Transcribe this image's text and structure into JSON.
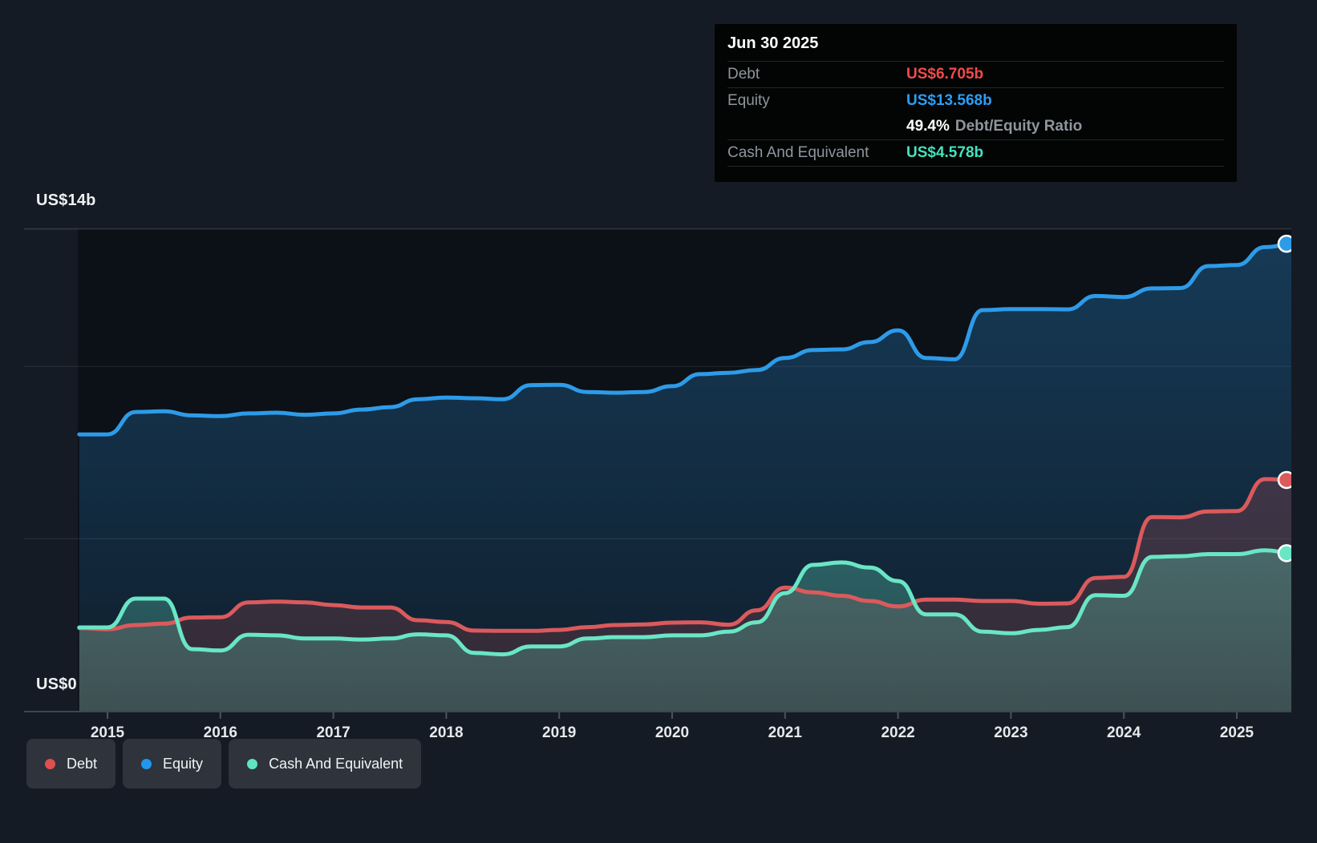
{
  "tooltip": {
    "date": "Jun 30 2025",
    "debt_label": "Debt",
    "debt_value": "US$6.705b",
    "equity_label": "Equity",
    "equity_value": "US$13.568b",
    "ratio_value": "49.4%",
    "ratio_label": "Debt/Equity Ratio",
    "cash_label": "Cash And Equivalent",
    "cash_value": "US$4.578b"
  },
  "axis": {
    "y_top_label": "US$14b",
    "y_zero_label": "US$0",
    "x_tick_years": [
      2015,
      2016,
      2017,
      2018,
      2019,
      2020,
      2021,
      2022,
      2023,
      2024,
      2025
    ]
  },
  "legend": [
    {
      "label": "Debt",
      "color": "#E04F4F"
    },
    {
      "label": "Equity",
      "color": "#2196EE"
    },
    {
      "label": "Cash And Equivalent",
      "color": "#5FE3C0"
    }
  ],
  "colors": {
    "page_bg": "#151B24",
    "plot_bg": "#0C1017",
    "axis_line": "#3F4650",
    "tick": "#4A525C",
    "grid_top": "rgba(255,255,255,0.14)",
    "grid_mid": "rgba(255,255,255,0.07)",
    "debt_line": "#DB5A5C",
    "equity_line": "#2D9BE8",
    "cash_line": "#69E6C5",
    "year_label": "#E6E9EC"
  },
  "chart_data": {
    "type": "area",
    "title": "Debt to Equity History (US$ billions)",
    "x_unit": "decimal_year_quarterly",
    "x_range": [
      2014.75,
      2025.5
    ],
    "ylim": [
      0,
      14
    ],
    "gridline_values": [
      14,
      10,
      5,
      0
    ],
    "labeled_gridlines": [
      "US$14b",
      "US$0"
    ],
    "legend_position": "bottom-left",
    "x": [
      2014.75,
      2015.0,
      2015.25,
      2015.5,
      2015.75,
      2016.0,
      2016.25,
      2016.5,
      2016.75,
      2017.0,
      2017.25,
      2017.5,
      2017.75,
      2018.0,
      2018.25,
      2018.5,
      2018.75,
      2019.0,
      2019.25,
      2019.5,
      2019.75,
      2020.0,
      2020.25,
      2020.5,
      2020.75,
      2021.0,
      2021.25,
      2021.5,
      2021.75,
      2022.0,
      2022.25,
      2022.5,
      2022.75,
      2023.0,
      2023.25,
      2023.5,
      2023.75,
      2024.0,
      2024.25,
      2024.5,
      2024.75,
      2025.0,
      2025.25,
      2025.5
    ],
    "series": [
      {
        "name": "Equity",
        "color": "#2D9BE8",
        "values": [
          8.03,
          8.03,
          8.68,
          8.7,
          8.58,
          8.56,
          8.64,
          8.66,
          8.6,
          8.64,
          8.75,
          8.82,
          9.05,
          9.1,
          9.08,
          9.05,
          9.46,
          9.47,
          9.26,
          9.24,
          9.26,
          9.43,
          9.78,
          9.82,
          9.9,
          10.25,
          10.48,
          10.5,
          10.71,
          11.05,
          10.25,
          10.21,
          11.64,
          11.67,
          11.67,
          11.66,
          12.05,
          12.02,
          12.27,
          12.28,
          12.92,
          12.95,
          13.47,
          13.568
        ]
      },
      {
        "name": "Debt",
        "color": "#DB5A5C",
        "values": [
          2.4,
          2.37,
          2.49,
          2.53,
          2.71,
          2.72,
          3.15,
          3.17,
          3.15,
          3.07,
          3.0,
          3.0,
          2.63,
          2.58,
          2.33,
          2.32,
          2.32,
          2.35,
          2.43,
          2.49,
          2.51,
          2.56,
          2.57,
          2.5,
          2.92,
          3.58,
          3.44,
          3.34,
          3.19,
          3.03,
          3.23,
          3.23,
          3.19,
          3.19,
          3.11,
          3.12,
          3.86,
          3.89,
          5.63,
          5.62,
          5.79,
          5.8,
          6.73,
          6.705
        ]
      },
      {
        "name": "Cash And Equivalent",
        "color": "#69E6C5",
        "values": [
          2.42,
          2.42,
          3.26,
          3.26,
          1.79,
          1.75,
          2.21,
          2.19,
          2.1,
          2.1,
          2.07,
          2.1,
          2.22,
          2.19,
          1.68,
          1.64,
          1.87,
          1.87,
          2.1,
          2.14,
          2.14,
          2.19,
          2.19,
          2.3,
          2.57,
          3.42,
          4.24,
          4.31,
          4.16,
          3.77,
          2.8,
          2.8,
          2.3,
          2.25,
          2.35,
          2.43,
          3.36,
          3.34,
          4.47,
          4.49,
          4.55,
          4.55,
          4.66,
          4.578
        ]
      }
    ],
    "last_point": {
      "date": "Jun 30 2025",
      "Debt": 6.705,
      "Equity": 13.568,
      "Cash And Equivalent": 4.578,
      "debt_equity_ratio_pct": 49.4
    }
  }
}
